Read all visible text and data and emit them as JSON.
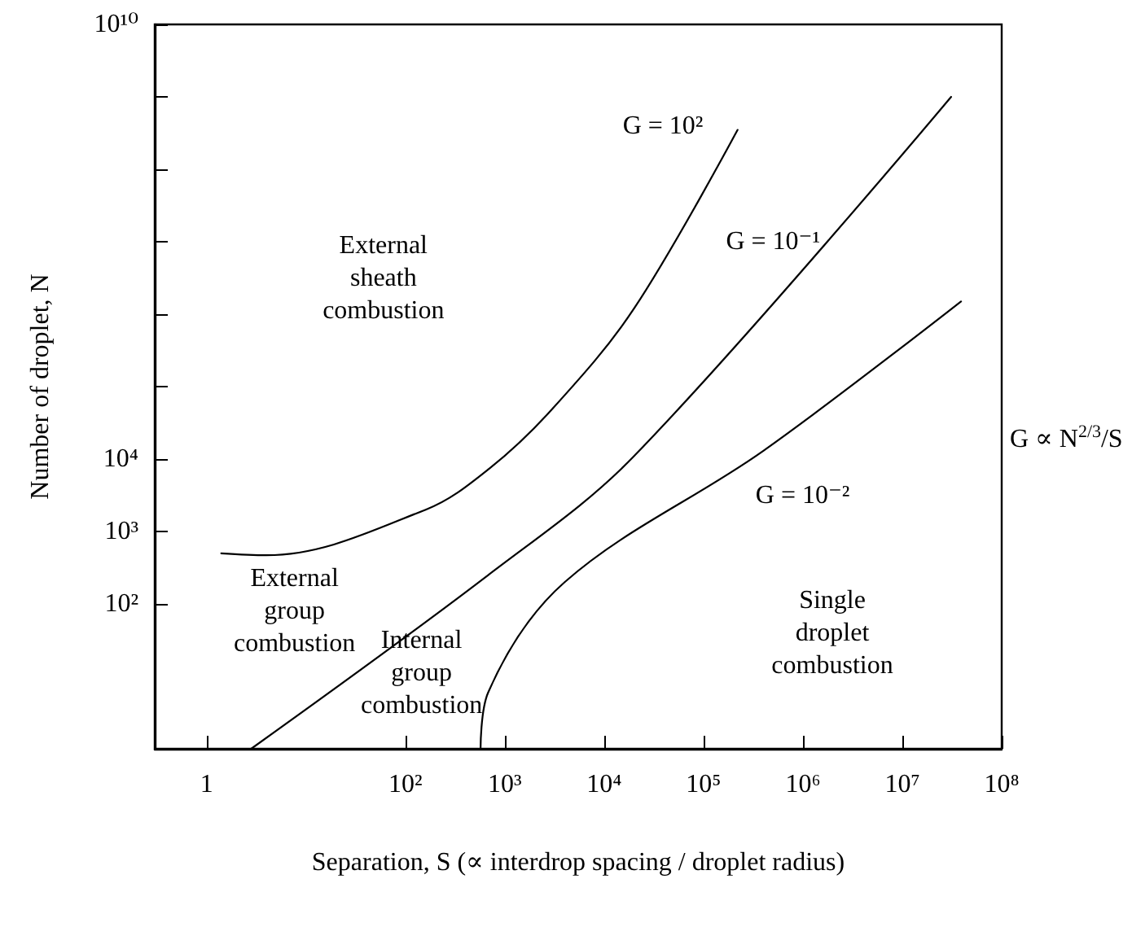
{
  "chart_data": {
    "type": "line",
    "xlabel": "Separation, S (∝ interdrop spacing / droplet radius)",
    "ylabel": "Number of droplet, N",
    "log": "xy",
    "grid": false,
    "marker": "none",
    "line_style": "solid",
    "xlim": [
      0.3,
      100000000
    ],
    "ylim": [
      1,
      10000000000
    ],
    "xticks": [
      {
        "value": 1,
        "label": "1"
      },
      {
        "value": 100,
        "label": "10²"
      },
      {
        "value": 1000,
        "label": "10³"
      },
      {
        "value": 10000,
        "label": "10⁴"
      },
      {
        "value": 100000,
        "label": "10⁵"
      },
      {
        "value": 1000000,
        "label": "10⁶"
      },
      {
        "value": 10000000,
        "label": "10⁷"
      },
      {
        "value": 100000000,
        "label": "10⁸"
      }
    ],
    "yticks": [
      {
        "value": 100,
        "label": "10²"
      },
      {
        "value": 1000,
        "label": "10³"
      },
      {
        "value": 10000,
        "label": "10⁴"
      },
      {
        "value": 100000,
        "label": null
      },
      {
        "value": 1000000,
        "label": null
      },
      {
        "value": 10000000,
        "label": null
      },
      {
        "value": 100000000,
        "label": null
      },
      {
        "value": 1000000000,
        "label": null
      },
      {
        "value": 10000000000,
        "label": "10¹⁰"
      }
    ],
    "series": [
      {
        "color": "#000000",
        "x": [
          1.4,
          4,
          160,
          700,
          3000,
          20000,
          220000
        ],
        "values": [
          500,
          470,
          2000,
          7400,
          49000,
          1200000,
          350000000
        ]
      },
      {
        "color": "#000000",
        "x": [
          2.8,
          680,
          20000,
          31000000
        ],
        "values": [
          1,
          250,
          11000,
          1000000000
        ]
      },
      {
        "color": "#000000",
        "x": [
          570,
          680,
          4000,
          400000,
          39000000
        ],
        "values": [
          1,
          6,
          200,
          13000,
          1500000
        ]
      }
    ],
    "annotations": [
      "External\nsheath\ncombustion",
      "External\ngroup\ncombustion",
      "Internal\ngroup\ncombustion",
      "Single\ndroplet\ncombustion",
      "G = 10²",
      "G = 10⁻¹",
      "G = 10⁻²",
      "G ∝ N$^{2/3}$/S"
    ]
  }
}
